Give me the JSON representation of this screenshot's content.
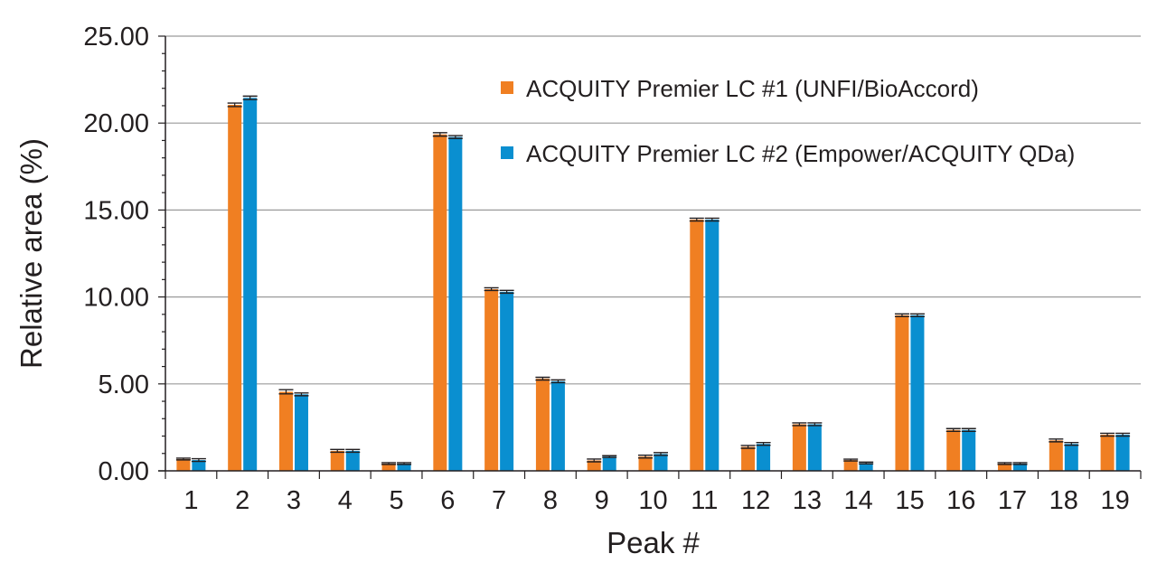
{
  "chart_data": {
    "type": "bar",
    "xlabel": "Peak #",
    "ylabel": "Relative area (%)",
    "ylim": [
      0,
      25
    ],
    "y_ticks": [
      "0.00",
      "5.00",
      "10.00",
      "15.00",
      "20.00",
      "25.00"
    ],
    "grid": true,
    "legend_position": "top-right",
    "categories": [
      "1",
      "2",
      "3",
      "4",
      "5",
      "6",
      "7",
      "8",
      "9",
      "10",
      "11",
      "12",
      "13",
      "14",
      "15",
      "16",
      "17",
      "18",
      "19"
    ],
    "series": [
      {
        "name": "ACQUITY Premier LC #1 (UNFI/BioAccord)",
        "color": "#f07f22",
        "values": [
          0.68,
          21.05,
          4.55,
          1.15,
          0.42,
          19.35,
          10.45,
          5.3,
          0.6,
          0.82,
          14.45,
          1.38,
          2.68,
          0.62,
          8.95,
          2.35,
          0.42,
          1.75,
          2.08
        ],
        "errors": [
          0.05,
          0.1,
          0.12,
          0.08,
          0.05,
          0.1,
          0.08,
          0.08,
          0.08,
          0.08,
          0.08,
          0.08,
          0.08,
          0.05,
          0.08,
          0.08,
          0.05,
          0.08,
          0.08
        ]
      },
      {
        "name": "ACQUITY Premier LC #2 (Empower/ACQUITY QDa)",
        "color": "#0a8fd0",
        "values": [
          0.62,
          21.45,
          4.4,
          1.15,
          0.42,
          19.2,
          10.3,
          5.15,
          0.82,
          0.97,
          14.45,
          1.55,
          2.68,
          0.45,
          8.95,
          2.35,
          0.42,
          1.55,
          2.08
        ],
        "errors": [
          0.08,
          0.1,
          0.08,
          0.08,
          0.05,
          0.08,
          0.08,
          0.08,
          0.05,
          0.08,
          0.08,
          0.08,
          0.08,
          0.05,
          0.08,
          0.08,
          0.05,
          0.08,
          0.08
        ]
      }
    ]
  }
}
